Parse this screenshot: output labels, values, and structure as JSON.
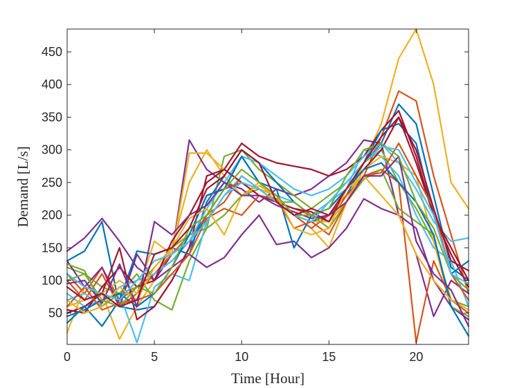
{
  "chart_data": {
    "type": "line",
    "xlabel": "Time [Hour]",
    "ylabel": "Demand [L/s]",
    "xlim": [
      0,
      23
    ],
    "ylim": [
      2,
      485
    ],
    "xticks": [
      0,
      5,
      10,
      15,
      20
    ],
    "yticks": [
      50,
      100,
      150,
      200,
      250,
      300,
      350,
      400,
      450
    ],
    "grid": false,
    "legend": "none",
    "x": [
      0,
      1,
      2,
      3,
      4,
      5,
      6,
      7,
      8,
      9,
      10,
      11,
      12,
      13,
      14,
      15,
      16,
      17,
      18,
      19,
      20,
      21,
      22,
      23
    ],
    "series": [
      {
        "color": "#0072BD",
        "values": [
          130,
          145,
          190,
          60,
          55,
          60,
          100,
          150,
          200,
          240,
          290,
          250,
          230,
          200,
          190,
          200,
          230,
          280,
          310,
          370,
          340,
          230,
          120,
          100
        ]
      },
      {
        "color": "#D95319",
        "values": [
          110,
          80,
          120,
          70,
          90,
          110,
          130,
          160,
          200,
          220,
          260,
          240,
          220,
          210,
          200,
          190,
          230,
          260,
          320,
          390,
          375,
          260,
          170,
          80
        ]
      },
      {
        "color": "#EDB120",
        "values": [
          20,
          90,
          80,
          10,
          60,
          100,
          150,
          250,
          300,
          260,
          230,
          250,
          220,
          200,
          180,
          150,
          220,
          280,
          340,
          440,
          485,
          400,
          250,
          210
        ]
      },
      {
        "color": "#7E2F8E",
        "values": [
          145,
          165,
          195,
          160,
          120,
          100,
          140,
          315,
          270,
          250,
          240,
          220,
          240,
          230,
          240,
          260,
          280,
          315,
          310,
          200,
          140,
          45,
          100,
          80
        ]
      },
      {
        "color": "#77AC30",
        "values": [
          120,
          110,
          90,
          80,
          110,
          70,
          55,
          130,
          180,
          290,
          300,
          270,
          250,
          230,
          210,
          230,
          250,
          280,
          300,
          250,
          210,
          160,
          70,
          60
        ]
      },
      {
        "color": "#4DBEEE",
        "values": [
          80,
          60,
          70,
          80,
          5,
          90,
          110,
          100,
          190,
          230,
          260,
          240,
          230,
          220,
          200,
          220,
          240,
          300,
          290,
          260,
          200,
          150,
          130,
          60
        ]
      },
      {
        "color": "#A2142F",
        "values": [
          50,
          60,
          80,
          150,
          40,
          60,
          100,
          150,
          260,
          270,
          310,
          290,
          280,
          275,
          270,
          260,
          270,
          290,
          330,
          360,
          290,
          200,
          140,
          90
        ]
      },
      {
        "color": "#0072BD",
        "values": [
          35,
          60,
          30,
          70,
          145,
          140,
          150,
          140,
          220,
          260,
          300,
          280,
          250,
          220,
          200,
          210,
          240,
          280,
          330,
          340,
          310,
          200,
          110,
          130
        ]
      },
      {
        "color": "#D95319",
        "values": [
          100,
          70,
          110,
          60,
          80,
          110,
          140,
          170,
          230,
          240,
          250,
          240,
          220,
          200,
          180,
          200,
          230,
          260,
          270,
          250,
          5,
          130,
          70,
          50
        ]
      },
      {
        "color": "#EDB120",
        "values": [
          60,
          70,
          80,
          100,
          80,
          160,
          140,
          295,
          295,
          270,
          250,
          240,
          230,
          200,
          190,
          190,
          220,
          270,
          290,
          280,
          260,
          160,
          60,
          40
        ]
      },
      {
        "color": "#7E2F8E",
        "values": [
          130,
          90,
          120,
          60,
          140,
          100,
          120,
          140,
          120,
          135,
          170,
          200,
          155,
          160,
          135,
          150,
          180,
          225,
          210,
          200,
          180,
          100,
          60,
          40
        ]
      },
      {
        "color": "#77AC30",
        "values": [
          125,
          115,
          60,
          80,
          90,
          120,
          150,
          170,
          180,
          200,
          230,
          240,
          220,
          220,
          200,
          180,
          220,
          255,
          270,
          210,
          190,
          170,
          60,
          45
        ]
      },
      {
        "color": "#4DBEEE",
        "values": [
          70,
          80,
          60,
          90,
          100,
          110,
          130,
          160,
          210,
          250,
          290,
          280,
          260,
          240,
          230,
          240,
          260,
          290,
          310,
          280,
          240,
          190,
          160,
          165
        ]
      },
      {
        "color": "#A2142F",
        "values": [
          55,
          50,
          90,
          120,
          90,
          100,
          160,
          200,
          250,
          270,
          250,
          230,
          220,
          210,
          205,
          190,
          240,
          270,
          300,
          350,
          280,
          200,
          150,
          100
        ]
      },
      {
        "color": "#0072BD",
        "values": [
          45,
          55,
          70,
          80,
          60,
          80,
          120,
          170,
          230,
          240,
          290,
          250,
          240,
          150,
          200,
          210,
          240,
          270,
          280,
          250,
          220,
          170,
          60,
          15
        ]
      },
      {
        "color": "#D95319",
        "values": [
          60,
          90,
          55,
          65,
          70,
          80,
          110,
          140,
          195,
          210,
          200,
          230,
          225,
          180,
          190,
          170,
          220,
          260,
          265,
          310,
          260,
          210,
          110,
          70
        ]
      },
      {
        "color": "#EDB120",
        "values": [
          70,
          50,
          60,
          90,
          70,
          120,
          150,
          195,
          210,
          170,
          230,
          245,
          230,
          180,
          170,
          180,
          240,
          260,
          230,
          200,
          140,
          100,
          70,
          55
        ]
      },
      {
        "color": "#7E2F8E",
        "values": [
          95,
          100,
          65,
          125,
          60,
          190,
          170,
          200,
          215,
          250,
          230,
          230,
          215,
          205,
          195,
          200,
          220,
          260,
          260,
          290,
          160,
          110,
          85,
          30
        ]
      },
      {
        "color": "#77AC30",
        "values": [
          100,
          110,
          70,
          60,
          90,
          80,
          120,
          180,
          200,
          240,
          270,
          250,
          230,
          200,
          200,
          210,
          260,
          300,
          310,
          290,
          220,
          180,
          110,
          85
        ]
      },
      {
        "color": "#4DBEEE",
        "values": [
          110,
          90,
          80,
          70,
          100,
          130,
          140,
          160,
          190,
          230,
          250,
          240,
          220,
          200,
          190,
          220,
          250,
          280,
          305,
          300,
          250,
          200,
          110,
          95
        ]
      },
      {
        "color": "#A2142F",
        "values": [
          90,
          70,
          80,
          60,
          70,
          140,
          150,
          180,
          240,
          260,
          300,
          280,
          220,
          200,
          210,
          200,
          240,
          280,
          320,
          350,
          300,
          210,
          130,
          115
        ]
      }
    ]
  }
}
